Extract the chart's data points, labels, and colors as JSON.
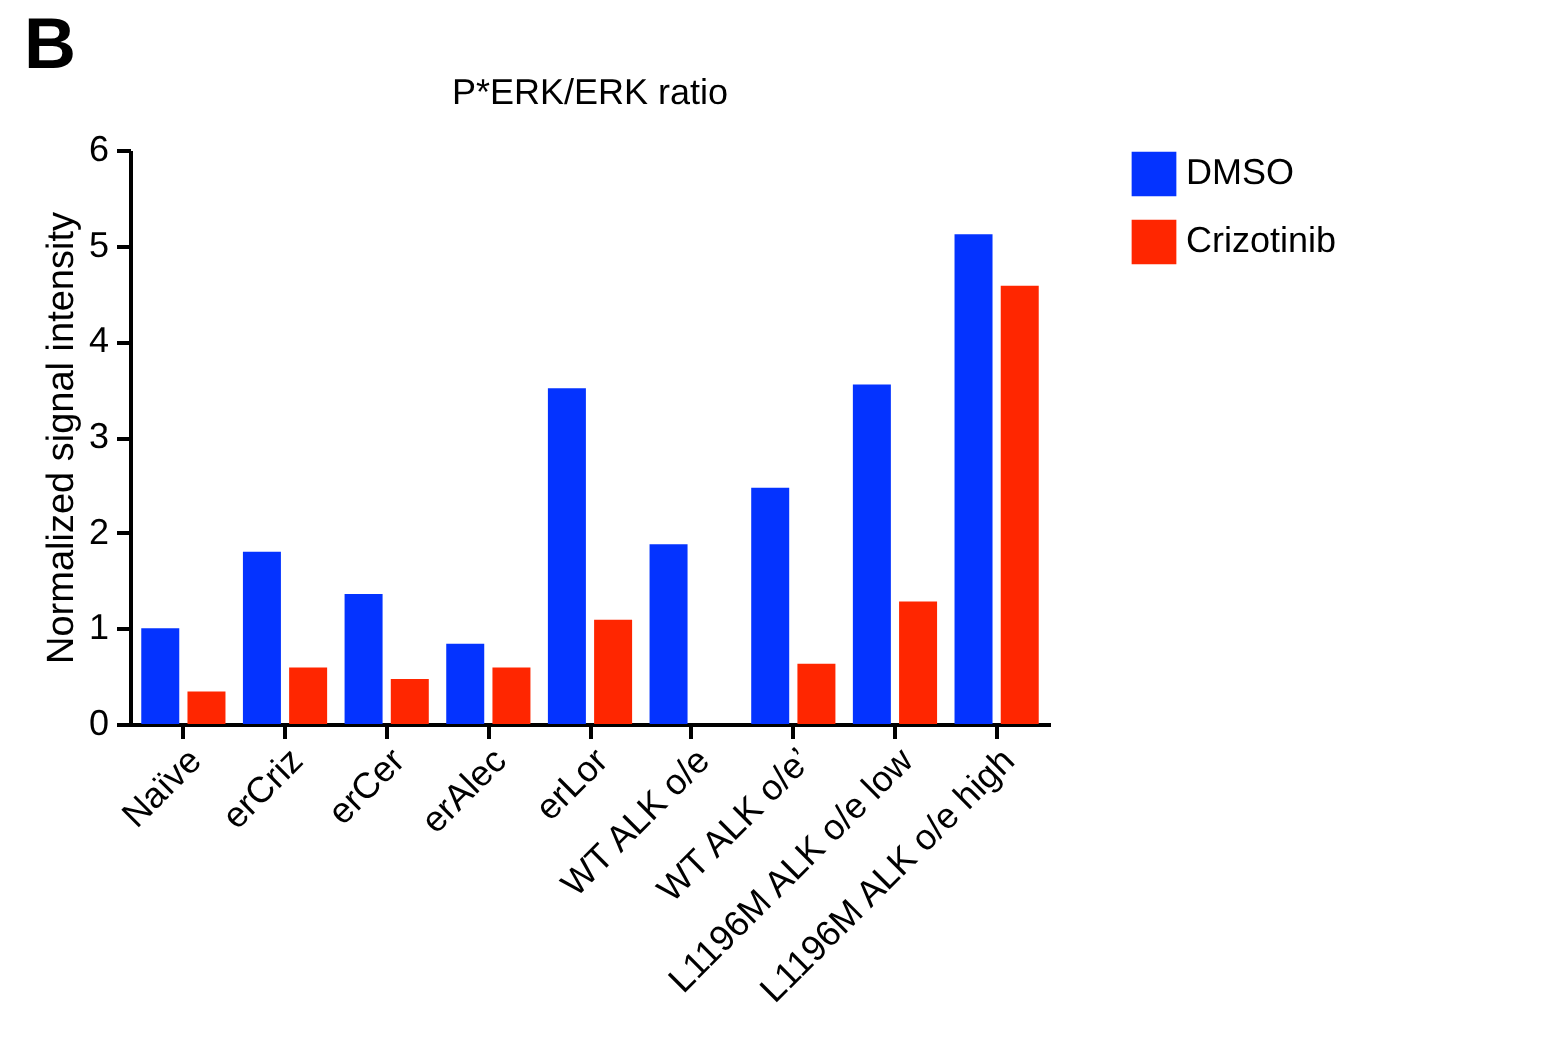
{
  "chart_data": {
    "type": "bar",
    "title": "P*ERK/ERK ratio",
    "ylabel": "Normalized signal intensity",
    "annotations": [
      "B"
    ],
    "categories": [
      "Naïve",
      "erCriz",
      "erCer",
      "erAlec",
      "erLor",
      "WT ALK o/e",
      "WT ALK o/e’",
      "L1196M ALK o/e low",
      "L1196M ALK o/e high"
    ],
    "series": [
      {
        "name": "DMSO",
        "color": "#0433ff",
        "values": [
          1.0,
          1.8,
          1.36,
          0.84,
          3.51,
          1.88,
          2.47,
          3.55,
          5.12
        ]
      },
      {
        "name": "Crizotinib",
        "color": "#ff2600",
        "values": [
          0.34,
          0.59,
          0.47,
          0.59,
          1.09,
          null,
          0.63,
          1.28,
          4.58
        ]
      }
    ],
    "ylim": [
      0,
      6
    ],
    "yticks": [
      0,
      1,
      2,
      3,
      4,
      5,
      6
    ],
    "grid": false,
    "legend": "top right"
  }
}
